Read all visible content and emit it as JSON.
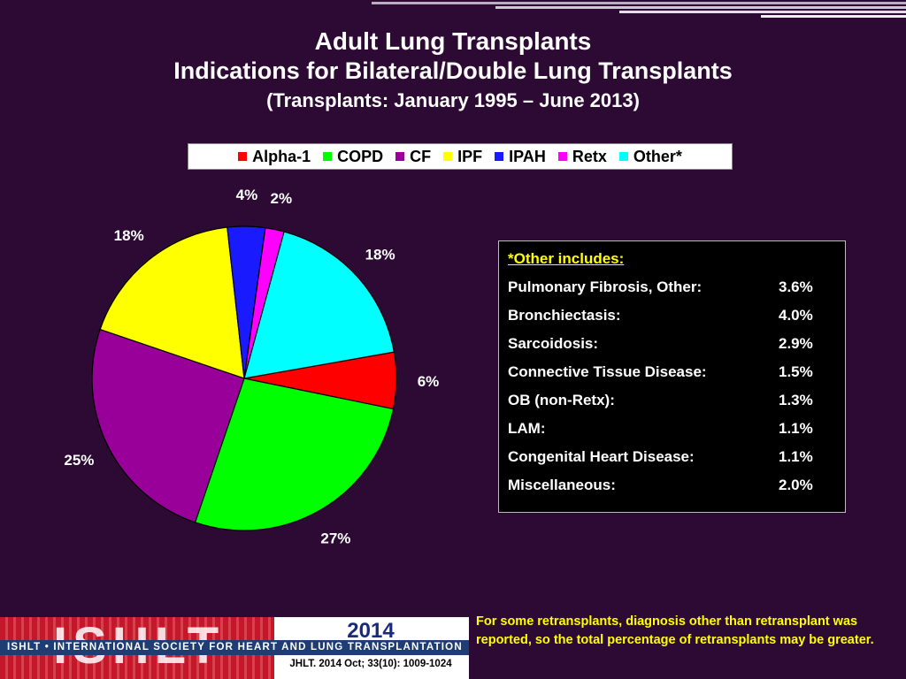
{
  "title": {
    "line1": "Adult Lung Transplants",
    "line2": "Indications for Bilateral/Double Lung Transplants",
    "line3": "(Transplants: January 1995 – June 2013)"
  },
  "colors": {
    "background": "#2c0a33",
    "accent": "#ffff00"
  },
  "chart_data": {
    "type": "pie",
    "start_angle_deg": 10,
    "direction": "clockwise",
    "legend_position": "top-center",
    "slices": [
      {
        "name": "Alpha-1",
        "value": 6,
        "label": "6%",
        "color": "#ff0000"
      },
      {
        "name": "COPD",
        "value": 27,
        "label": "27%",
        "color": "#00ff00"
      },
      {
        "name": "CF",
        "value": 25,
        "label": "25%",
        "color": "#990099"
      },
      {
        "name": "IPF",
        "value": 18,
        "label": "18%",
        "color": "#ffff00"
      },
      {
        "name": "IPAH",
        "value": 4,
        "label": "4%",
        "color": "#1a1aff"
      },
      {
        "name": "Retx",
        "value": 2,
        "label": "2%",
        "color": "#ff00ff"
      },
      {
        "name": "Other*",
        "value": 18,
        "label": "18%",
        "color": "#00ffff"
      }
    ]
  },
  "other_box": {
    "title": "*Other includes:",
    "items": [
      {
        "name": "Pulmonary Fibrosis, Other:",
        "value": "3.6%"
      },
      {
        "name": "Bronchiectasis:",
        "value": "4.0%"
      },
      {
        "name": "Sarcoidosis:",
        "value": "2.9%"
      },
      {
        "name": "Connective Tissue Disease:",
        "value": "1.5%"
      },
      {
        "name": "OB (non-Retx):",
        "value": "1.3%"
      },
      {
        "name": "LAM:",
        "value": "1.1%"
      },
      {
        "name": "Congenital Heart Disease:",
        "value": "1.1%"
      },
      {
        "name": "Miscellaneous:",
        "value": "2.0%"
      }
    ]
  },
  "footer": {
    "logo_text": "ISHLT",
    "org_name": "ISHLT • INTERNATIONAL SOCIETY FOR HEART AND LUNG TRANSPLANTATION",
    "year": "2014",
    "citation": "JHLT. 2014 Oct; 33(10): 1009-1024",
    "note": "For some retransplants, diagnosis other than retransplant was reported, so the total percentage of retransplants may be greater."
  }
}
